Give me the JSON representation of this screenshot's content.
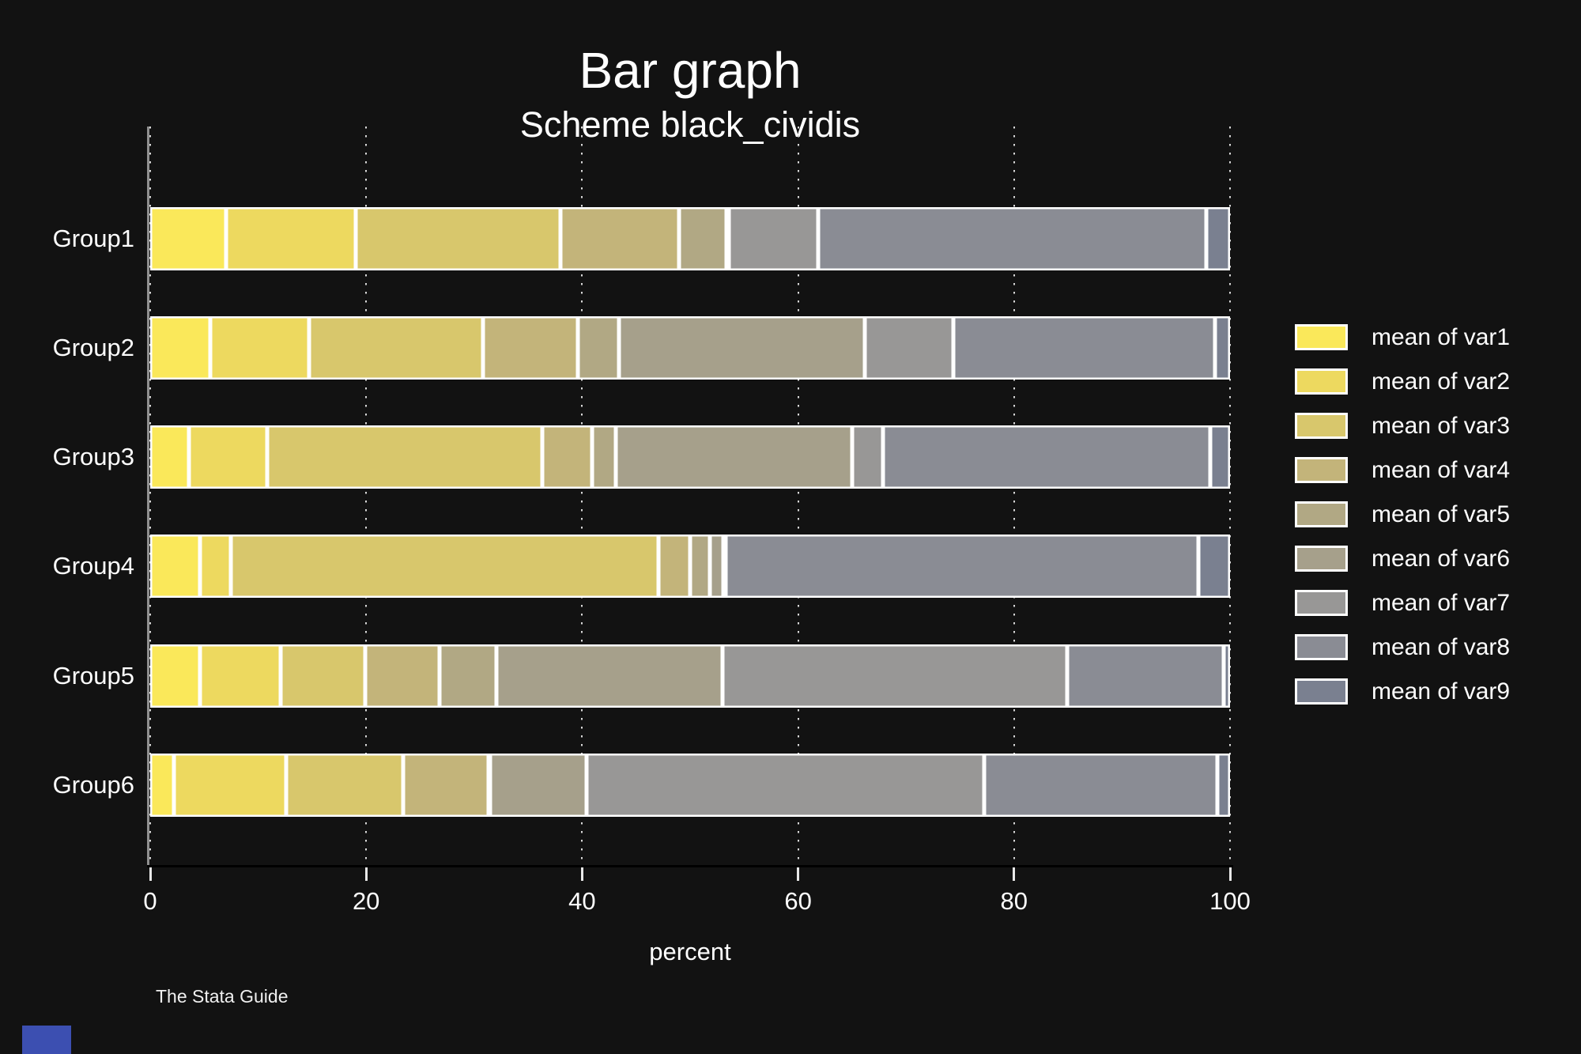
{
  "title": "Bar graph",
  "subtitle": "Scheme black_cividis",
  "watermark": "The Stata Guide",
  "colors": {
    "background": "#121212",
    "text": "#ffffff",
    "axis_line": "#000000",
    "y_axis_line": "#8f8f8f",
    "tick_mark": "#e8e8e8",
    "grid_dot": "#d9d9d9",
    "segment_border": "#ffffff",
    "corner_accent": "#3c4fb1"
  },
  "x_axis": {
    "label": "percent",
    "tick_labels": [
      "0",
      "20",
      "40",
      "60",
      "80",
      "100"
    ]
  },
  "chart_data": {
    "type": "bar",
    "orientation": "horizontal-stacked",
    "title": "Bar graph",
    "subtitle": "Scheme black_cividis",
    "xlabel": "percent",
    "ylabel": "",
    "xlim": [
      0,
      100
    ],
    "xticks": [
      0,
      20,
      40,
      60,
      80,
      100
    ],
    "grid": "dotted-vertical",
    "legend_position": "right",
    "categories": [
      "Group1",
      "Group2",
      "Group3",
      "Group4",
      "Group5",
      "Group6"
    ],
    "series": [
      {
        "name": "mean of var1",
        "color": "#FAE85A",
        "values": [
          7.0,
          5.6,
          3.6,
          4.6,
          4.6,
          2.2
        ]
      },
      {
        "name": "mean of var2",
        "color": "#EDD95F",
        "values": [
          12.0,
          9.1,
          7.2,
          2.9,
          7.5,
          10.4
        ]
      },
      {
        "name": "mean of var3",
        "color": "#D8C76C",
        "values": [
          19.0,
          16.1,
          25.5,
          39.6,
          7.8,
          10.8
        ]
      },
      {
        "name": "mean of var4",
        "color": "#C3B47A",
        "values": [
          11.0,
          8.8,
          4.6,
          2.9,
          6.9,
          7.9
        ]
      },
      {
        "name": "mean of var5",
        "color": "#B1A884",
        "values": [
          4.4,
          3.8,
          2.2,
          1.8,
          5.3,
          0.2
        ]
      },
      {
        "name": "mean of var6",
        "color": "#A6A08B",
        "values": [
          0.2,
          22.8,
          21.9,
          1.3,
          20.9,
          8.9
        ]
      },
      {
        "name": "mean of var7",
        "color": "#989796",
        "values": [
          8.3,
          8.2,
          2.9,
          0.2,
          31.9,
          36.8
        ]
      },
      {
        "name": "mean of var8",
        "color": "#8A8C94",
        "values": [
          35.9,
          24.2,
          30.3,
          43.8,
          14.5,
          21.6
        ]
      },
      {
        "name": "mean of var9",
        "color": "#7A8090",
        "values": [
          2.2,
          1.4,
          1.8,
          2.9,
          0.6,
          1.2
        ]
      }
    ]
  }
}
